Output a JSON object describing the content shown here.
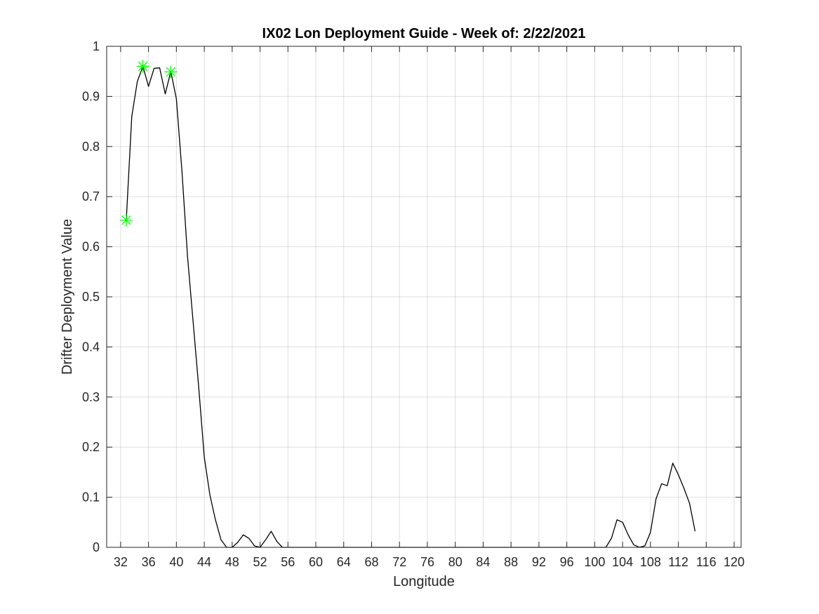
{
  "chart_data": {
    "type": "line",
    "title": "IX02 Lon Deployment Guide - Week of: 2/22/2021",
    "xlabel": "Longitude",
    "ylabel": "Drifter Deployment Value",
    "xlim": [
      30,
      121
    ],
    "ylim": [
      0,
      1
    ],
    "grid": true,
    "xticks": [
      32,
      36,
      40,
      44,
      48,
      52,
      56,
      60,
      64,
      68,
      72,
      76,
      80,
      84,
      88,
      92,
      96,
      100,
      104,
      108,
      112,
      116,
      120
    ],
    "xtick_labels": [
      "32",
      "36",
      "40",
      "44",
      "48",
      "52",
      "56",
      "60",
      "64",
      "68",
      "72",
      "76",
      "80",
      "84",
      "88",
      "92",
      "96",
      "100",
      "104",
      "108",
      "112",
      "116",
      "120"
    ],
    "yticks": [
      0,
      0.1,
      0.2,
      0.3,
      0.4,
      0.5,
      0.6,
      0.7,
      0.8,
      0.9,
      1
    ],
    "ytick_labels": [
      "0",
      "0.1",
      "0.2",
      "0.3",
      "0.4",
      "0.5",
      "0.6",
      "0.7",
      "0.8",
      "0.9",
      "1"
    ],
    "series": [
      {
        "line_color": "#000000",
        "x": [
          32.8,
          33.6,
          34.4,
          35.2,
          36.0,
          36.8,
          37.6,
          38.4,
          39.2,
          40.0,
          40.8,
          41.6,
          42.4,
          43.2,
          44.0,
          44.8,
          45.6,
          46.4,
          47.2,
          48.0,
          48.8,
          49.6,
          50.4,
          51.2,
          52.0,
          52.8,
          53.6,
          54.4,
          55.2,
          56.0,
          56.8,
          60,
          70,
          80,
          90,
          100,
          101.6,
          102.4,
          103.2,
          104.0,
          104.8,
          105.6,
          106.4,
          107.2,
          108.0,
          108.8,
          109.6,
          110.4,
          111.2,
          112.0,
          112.8,
          113.6,
          114.4
        ],
        "y": [
          0.65,
          0.86,
          0.93,
          0.96,
          0.92,
          0.956,
          0.957,
          0.905,
          0.95,
          0.895,
          0.75,
          0.58,
          0.45,
          0.32,
          0.18,
          0.105,
          0.055,
          0.015,
          0.0,
          0.0,
          0.01,
          0.025,
          0.018,
          0.003,
          0.0,
          0.015,
          0.032,
          0.012,
          0.0,
          0.0,
          0.0,
          0.0,
          0.0,
          0.0,
          0.0,
          0.0,
          0.0,
          0.018,
          0.055,
          0.05,
          0.025,
          0.005,
          0.0,
          0.003,
          0.03,
          0.097,
          0.127,
          0.123,
          0.168,
          0.145,
          0.118,
          0.088,
          0.032
        ]
      },
      {
        "marker": "asterisk",
        "marker_color": "#00ff00",
        "x": [
          32.8,
          35.2,
          39.2
        ],
        "y": [
          0.653,
          0.96,
          0.949
        ]
      }
    ]
  }
}
